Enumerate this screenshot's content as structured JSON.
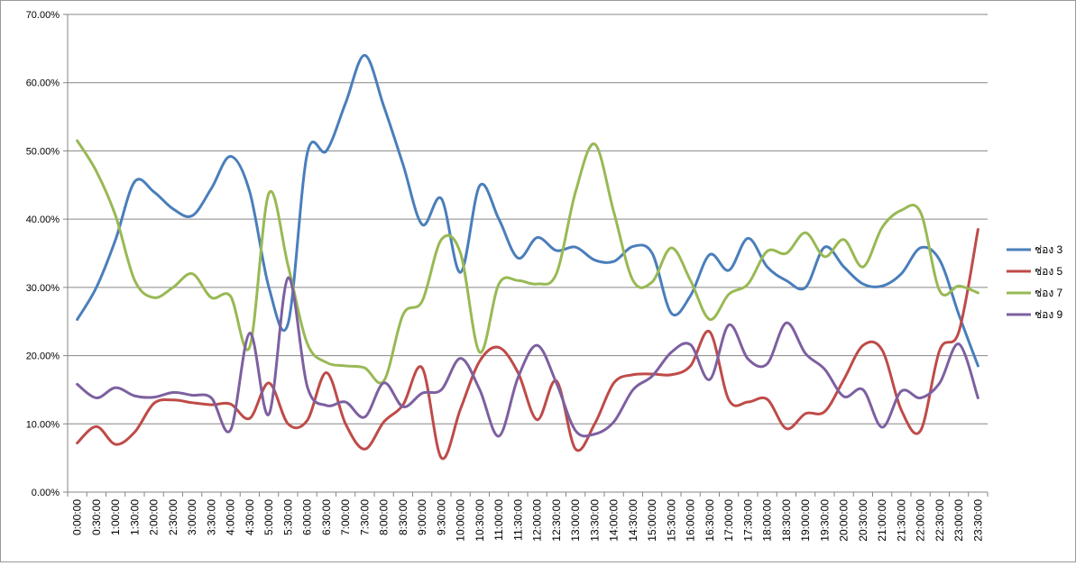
{
  "chart_data": {
    "type": "line",
    "title": "",
    "xlabel": "",
    "ylabel": "",
    "ylim": [
      0,
      70
    ],
    "y_tick_step": 10,
    "y_format": "percent_2dp",
    "grid": "horizontal",
    "legend": "right",
    "x": [
      "0:00:00",
      "0:30:00",
      "1:00:00",
      "1:30:00",
      "2:00:00",
      "2:30:00",
      "3:00:00",
      "3:30:00",
      "4:00:00",
      "4:30:00",
      "5:00:00",
      "5:30:00",
      "6:00:00",
      "6:30:00",
      "7:00:00",
      "7:30:00",
      "8:00:00",
      "8:30:00",
      "9:00:00",
      "9:30:00",
      "10:00:00",
      "10:30:00",
      "11:00:00",
      "11:30:00",
      "12:00:00",
      "12:30:00",
      "13:00:00",
      "13:30:00",
      "14:00:00",
      "14:30:00",
      "15:00:00",
      "15:30:00",
      "16:00:00",
      "16:30:00",
      "17:00:00",
      "17:30:00",
      "18:00:00",
      "18:30:00",
      "19:00:00",
      "19:30:00",
      "20:00:00",
      "20:30:00",
      "21:00:00",
      "21:30:00",
      "22:00:00",
      "22:30:00",
      "23:00:00",
      "23:30:00"
    ],
    "series": [
      {
        "name": "ช่อง 3",
        "color": "#4a7ebb",
        "values": [
          25.3,
          30.0,
          37.0,
          45.5,
          44.0,
          41.5,
          40.5,
          44.5,
          49.2,
          44.0,
          30.0,
          24.7,
          49.6,
          50.0,
          57.0,
          64.0,
          56.5,
          48.0,
          39.2,
          43.0,
          32.2,
          44.9,
          40.0,
          34.3,
          37.3,
          35.4,
          35.9,
          34.0,
          33.8,
          36.0,
          35.0,
          26.2,
          28.8,
          34.8,
          32.5,
          37.2,
          33.0,
          31.0,
          30.0,
          35.9,
          33.0,
          30.5,
          30.2,
          32.0,
          35.8,
          34.0,
          26.0,
          18.5
        ]
      },
      {
        "name": "ช่อง 5",
        "color": "#be4b48",
        "values": [
          7.2,
          9.6,
          7.0,
          8.8,
          13.0,
          13.5,
          13.1,
          12.8,
          12.9,
          10.8,
          16.0,
          10.0,
          10.5,
          17.5,
          10.0,
          6.3,
          10.3,
          12.8,
          18.2,
          5.0,
          12.2,
          19.2,
          21.2,
          17.5,
          10.6,
          16.3,
          6.3,
          10.0,
          16.0,
          17.2,
          17.3,
          17.2,
          18.5,
          23.5,
          13.5,
          13.2,
          13.6,
          9.3,
          11.5,
          11.8,
          16.5,
          21.5,
          20.8,
          12.0,
          9.0,
          20.8,
          23.5,
          38.5
        ]
      },
      {
        "name": "ช่อง 7",
        "color": "#98b954",
        "values": [
          51.5,
          47.0,
          40.5,
          31.0,
          28.5,
          30.0,
          32.0,
          28.5,
          28.7,
          21.3,
          43.8,
          33.2,
          21.8,
          19.0,
          18.5,
          18.2,
          16.3,
          26.0,
          28.0,
          37.0,
          35.0,
          20.5,
          30.5,
          31.0,
          30.5,
          32.0,
          44.0,
          51.0,
          41.0,
          31.0,
          30.8,
          35.8,
          31.0,
          25.3,
          29.0,
          30.5,
          35.3,
          35.0,
          38.0,
          34.5,
          37.0,
          33.0,
          38.8,
          41.3,
          41.0,
          29.5,
          30.2,
          29.2
        ]
      },
      {
        "name": "ช่อง 9",
        "color": "#7d60a0",
        "values": [
          15.8,
          13.8,
          15.3,
          14.1,
          13.9,
          14.6,
          14.2,
          13.8,
          9.1,
          23.3,
          11.4,
          31.4,
          15.5,
          12.7,
          13.2,
          11.0,
          16.0,
          12.5,
          14.5,
          15.0,
          19.6,
          15.0,
          8.2,
          16.8,
          21.5,
          16.0,
          9.0,
          8.5,
          10.3,
          15.0,
          17.0,
          20.5,
          21.6,
          16.5,
          24.5,
          19.5,
          18.8,
          24.8,
          20.3,
          18.0,
          14.0,
          15.0,
          9.5,
          14.8,
          13.8,
          16.0,
          21.7,
          13.8
        ]
      }
    ]
  }
}
